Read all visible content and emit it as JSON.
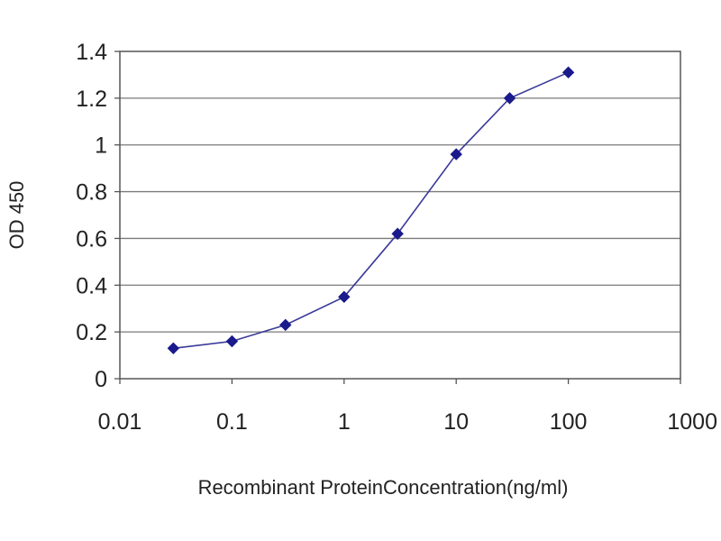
{
  "chart_data": {
    "type": "line",
    "title": "",
    "xlabel": "Recombinant ProteinConcentration(ng/ml)",
    "ylabel": "OD 450",
    "x_scale": "log",
    "xlim": [
      0.01,
      1000
    ],
    "ylim": [
      0,
      1.4
    ],
    "x_ticks": [
      "0.01",
      "0.1",
      "1",
      "10",
      "100",
      "1000"
    ],
    "x_tick_values": [
      0.01,
      0.1,
      1,
      10,
      100,
      1000
    ],
    "y_ticks": [
      "0",
      "0.2",
      "0.4",
      "0.6",
      "0.8",
      "1",
      "1.2",
      "1.4"
    ],
    "y_tick_values": [
      0,
      0.2,
      0.4,
      0.6,
      0.8,
      1.0,
      1.2,
      1.4
    ],
    "grid": "horizontal",
    "legend": "none",
    "series": [
      {
        "x": [
          0.03,
          0.1,
          0.3,
          1,
          3,
          10,
          30,
          100
        ],
        "y": [
          0.13,
          0.16,
          0.23,
          0.35,
          0.62,
          0.96,
          1.2,
          1.31
        ],
        "marker": "diamond",
        "color": "#3a3a9a",
        "marker_color": "#1a1a8c"
      }
    ],
    "plot_background": "#ffffff",
    "grid_color": "#7a7a7a"
  }
}
